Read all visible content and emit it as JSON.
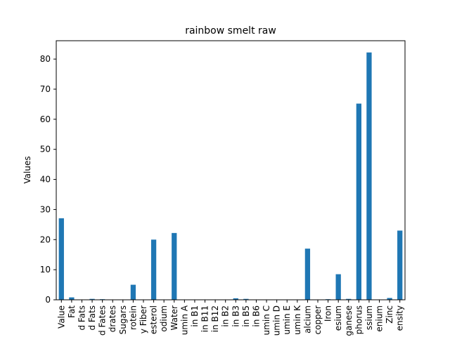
{
  "chart_data": {
    "type": "bar",
    "title": "rainbow smelt raw",
    "xlabel": "",
    "ylabel": "Values",
    "ylim": [
      0,
      86.1
    ],
    "yticks": [
      0,
      10,
      20,
      30,
      40,
      50,
      60,
      70,
      80
    ],
    "grid": false,
    "legend": "none",
    "bar_color": "#1f77b4",
    "categories": [
      "Value",
      "Fat",
      "d Fats",
      "d Fats",
      "d Fates",
      "drates",
      "Sugars",
      "rotein",
      "y Fiber",
      "esterol",
      "odium",
      "Water",
      "umin A",
      "in B1",
      "in B11",
      "in B12",
      "in B2",
      "in B3",
      "in B5",
      "in B6",
      "umin C",
      "umin D",
      "umin E",
      "umin K",
      "alcium",
      "copper",
      "Iron",
      "esium",
      "ganese",
      "phorus",
      "ssium",
      "enium",
      "Zinc",
      "ensity"
    ],
    "values": [
      27.1,
      0.8,
      0.05,
      0.3,
      0.2,
      0.0,
      0.0,
      5.0,
      0.0,
      20.0,
      0.0,
      22.2,
      0.0,
      0.0,
      0.0,
      0.0,
      0.0,
      0.5,
      0.3,
      0.1,
      0.0,
      0.0,
      0.0,
      0.0,
      17.0,
      0.0,
      0.2,
      8.5,
      0.3,
      65.2,
      82.2,
      0.0,
      0.6,
      23.0
    ]
  }
}
